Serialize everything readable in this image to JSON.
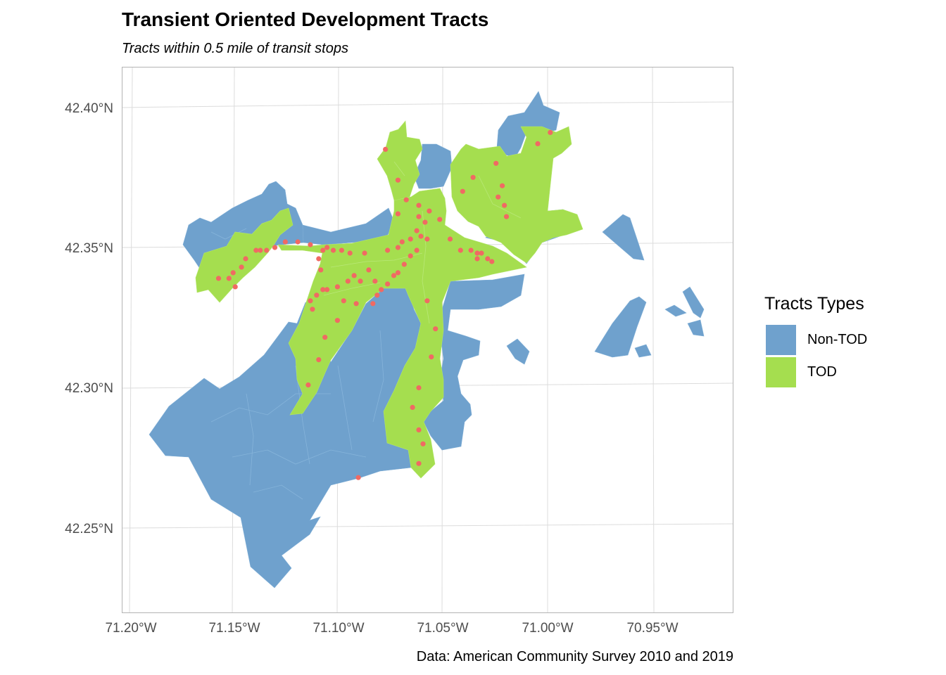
{
  "title": "Transient Oriented Development Tracts",
  "subtitle": "Tracts within 0.5 mile of transit stops",
  "caption": "Data: American Community Survey 2010 and 2019",
  "colors": {
    "non_tod": "#6fa1cd",
    "tod": "#a5de4f",
    "stops": "#f06a63",
    "grid": "#dcdcdc",
    "border": "#b3b3b3"
  },
  "legend": {
    "title": "Tracts Types",
    "items": [
      {
        "label": "Non-TOD",
        "color": "#6fa1cd"
      },
      {
        "label": "TOD",
        "color": "#a5de4f"
      }
    ]
  },
  "axes": {
    "x_ticks": [
      "71.20°W",
      "71.15°W",
      "71.10°W",
      "71.05°W",
      "71.00°W",
      "70.95°W"
    ],
    "y_ticks": [
      "42.40°N",
      "42.35°N",
      "42.30°N",
      "42.25°N"
    ],
    "x_range_lon": [
      -71.203,
      -70.917
    ],
    "y_range_lat": [
      42.215,
      42.415
    ]
  },
  "chart_data": {
    "type": "map",
    "layers": [
      "Non-TOD tracts",
      "TOD tracts",
      "transit stops"
    ],
    "transit_stops_lonlat": [
      [
        -71.078,
        42.385
      ],
      [
        -71.072,
        42.374
      ],
      [
        -71.068,
        42.367
      ],
      [
        -71.072,
        42.362
      ],
      [
        -71.062,
        42.365
      ],
      [
        -71.057,
        42.363
      ],
      [
        -71.062,
        42.361
      ],
      [
        -71.059,
        42.359
      ],
      [
        -71.052,
        42.36
      ],
      [
        -71.063,
        42.356
      ],
      [
        -71.061,
        42.354
      ],
      [
        -71.066,
        42.353
      ],
      [
        -71.058,
        42.353
      ],
      [
        -71.07,
        42.352
      ],
      [
        -71.072,
        42.35
      ],
      [
        -71.077,
        42.349
      ],
      [
        -71.063,
        42.349
      ],
      [
        -71.066,
        42.347
      ],
      [
        -71.069,
        42.344
      ],
      [
        -71.072,
        42.341
      ],
      [
        -71.074,
        42.34
      ],
      [
        -71.077,
        42.337
      ],
      [
        -71.08,
        42.335
      ],
      [
        -71.082,
        42.333
      ],
      [
        -71.084,
        42.33
      ],
      [
        -71.086,
        42.342
      ],
      [
        -71.083,
        42.338
      ],
      [
        -71.09,
        42.338
      ],
      [
        -71.093,
        42.34
      ],
      [
        -71.088,
        42.348
      ],
      [
        -71.095,
        42.348
      ],
      [
        -71.099,
        42.349
      ],
      [
        -71.103,
        42.349
      ],
      [
        -71.106,
        42.35
      ],
      [
        -71.108,
        42.349
      ],
      [
        -71.11,
        42.346
      ],
      [
        -71.109,
        42.342
      ],
      [
        -71.114,
        42.351
      ],
      [
        -71.12,
        42.352
      ],
      [
        -71.126,
        42.352
      ],
      [
        -71.131,
        42.35
      ],
      [
        -71.135,
        42.349
      ],
      [
        -71.138,
        42.349
      ],
      [
        -71.14,
        42.349
      ],
      [
        -71.145,
        42.346
      ],
      [
        -71.147,
        42.343
      ],
      [
        -71.151,
        42.341
      ],
      [
        -71.153,
        42.339
      ],
      [
        -71.158,
        42.339
      ],
      [
        -71.15,
        42.336
      ],
      [
        -71.106,
        42.335
      ],
      [
        -71.108,
        42.335
      ],
      [
        -71.111,
        42.333
      ],
      [
        -71.114,
        42.331
      ],
      [
        -71.113,
        42.328
      ],
      [
        -71.101,
        42.336
      ],
      [
        -71.096,
        42.338
      ],
      [
        -71.098,
        42.331
      ],
      [
        -71.092,
        42.33
      ],
      [
        -71.101,
        42.324
      ],
      [
        -71.107,
        42.318
      ],
      [
        -71.11,
        42.31
      ],
      [
        -71.115,
        42.301
      ],
      [
        -71.058,
        42.331
      ],
      [
        -71.054,
        42.321
      ],
      [
        -71.056,
        42.311
      ],
      [
        -71.062,
        42.3
      ],
      [
        -71.065,
        42.293
      ],
      [
        -71.062,
        42.285
      ],
      [
        -71.06,
        42.28
      ],
      [
        -71.062,
        42.273
      ],
      [
        -71.091,
        42.268
      ],
      [
        -71.047,
        42.353
      ],
      [
        -71.042,
        42.349
      ],
      [
        -71.037,
        42.349
      ],
      [
        -71.034,
        42.348
      ],
      [
        -71.032,
        42.348
      ],
      [
        -71.029,
        42.346
      ],
      [
        -71.027,
        42.345
      ],
      [
        -71.034,
        42.346
      ],
      [
        -71.041,
        42.37
      ],
      [
        -71.036,
        42.375
      ],
      [
        -71.022,
        42.372
      ],
      [
        -71.024,
        42.368
      ],
      [
        -71.021,
        42.365
      ],
      [
        -71.02,
        42.361
      ],
      [
        -71.025,
        42.38
      ],
      [
        -71.005,
        42.387
      ],
      [
        -70.999,
        42.391
      ]
    ]
  }
}
